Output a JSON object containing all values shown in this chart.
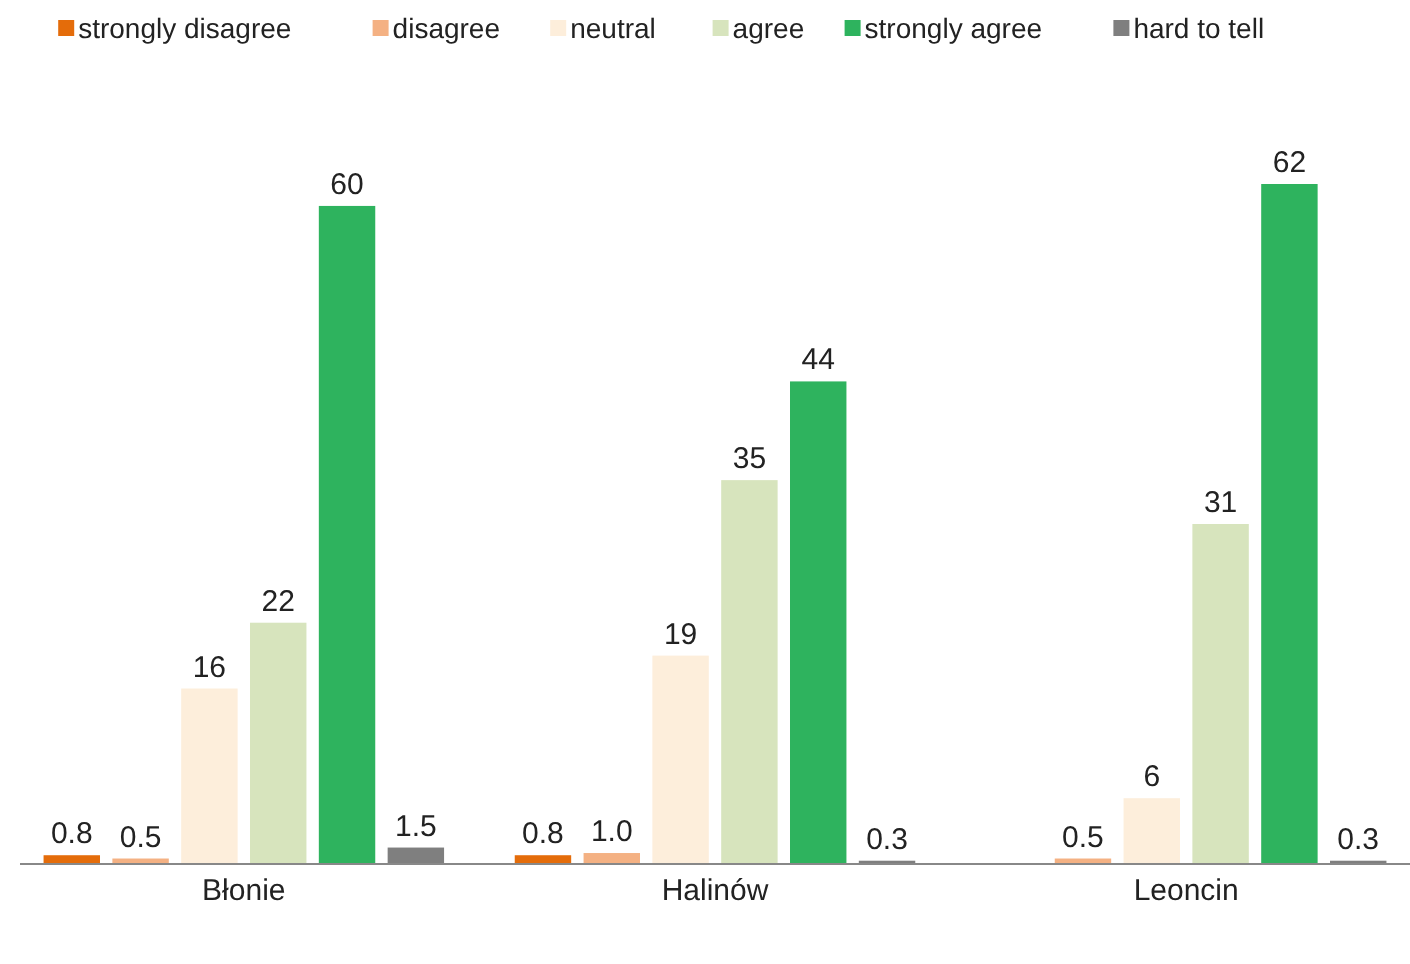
{
  "chart_data": {
    "type": "bar",
    "categories": [
      "Błonie",
      "Halinów",
      "Leoncin"
    ],
    "legend": "top",
    "series": [
      {
        "name": "strongly disagree",
        "color": "#e46c0a",
        "values": [
          0.8,
          0.8,
          null
        ],
        "value_labels": [
          "0.8",
          "0.8",
          null
        ]
      },
      {
        "name": "disagree",
        "color": "#f4b183",
        "values": [
          0.5,
          1.0,
          0.5
        ],
        "value_labels": [
          "0.5",
          "1.0",
          "0.5"
        ]
      },
      {
        "name": "neutral",
        "color": "#fdeedb",
        "values": [
          16,
          19,
          6
        ],
        "value_labels": [
          "16",
          "19",
          "6"
        ]
      },
      {
        "name": "agree",
        "color": "#d7e4bd",
        "values": [
          22,
          35,
          31
        ],
        "value_labels": [
          "22",
          "35",
          "31"
        ]
      },
      {
        "name": "strongly agree",
        "color": "#2eb35e",
        "values": [
          60,
          44,
          62
        ],
        "value_labels": [
          "60",
          "44",
          "62"
        ]
      },
      {
        "name": "hard to tell",
        "color": "#7f7f7f",
        "values": [
          1.5,
          0.3,
          0.3
        ],
        "value_labels": [
          "1.5",
          "0.3",
          "0.3"
        ]
      }
    ]
  }
}
